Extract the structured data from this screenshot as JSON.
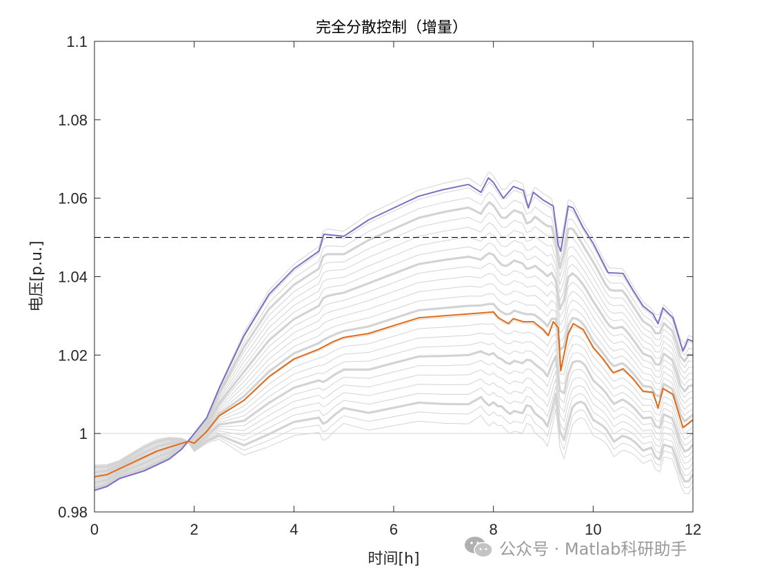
{
  "chart_data": {
    "type": "line",
    "title": "完全分散控制（增量）",
    "xlabel": "时间[h]",
    "ylabel": "电压[p.u.]",
    "xlim": [
      0,
      12
    ],
    "ylim": [
      0.98,
      1.1
    ],
    "xticks": [
      0,
      2,
      4,
      6,
      8,
      10,
      12
    ],
    "xtick_labels": [
      "0",
      "2",
      "4",
      "6",
      "8",
      "10",
      "12"
    ],
    "yticks": [
      0.98,
      1.0,
      1.02,
      1.04,
      1.06,
      1.08,
      1.1
    ],
    "ytick_labels": [
      "0.98",
      "1",
      "1.02",
      "1.04",
      "1.06",
      "1.08",
      "1.1"
    ],
    "grid": false,
    "reference_lines": [
      {
        "y": 1.05,
        "style": "dashed",
        "color": "#000000"
      }
    ],
    "colors": {
      "highlight_max": "#7B6FC4",
      "highlight_mid": "#E06A16",
      "background_series": "#D3D3D3",
      "reference": "#000000"
    },
    "series": [
      {
        "role": "max-voltage-bus",
        "color": "#7B6FC4",
        "width": 2,
        "x": [
          0,
          0.25,
          0.5,
          0.75,
          1,
          1.25,
          1.5,
          1.75,
          2,
          2.25,
          2.5,
          3,
          3.5,
          4,
          4.5,
          4.6,
          5,
          5.5,
          6,
          6.5,
          7,
          7.5,
          7.75,
          7.9,
          8,
          8.2,
          8.4,
          8.6,
          8.7,
          8.8,
          8.9,
          9,
          9.2,
          9.3,
          9.35,
          9.5,
          9.6,
          9.8,
          10,
          10.3,
          10.6,
          10.8,
          11,
          11.2,
          11.3,
          11.4,
          11.6,
          11.8,
          11.9,
          12
        ],
        "y": [
          0.9855,
          0.9865,
          0.9885,
          0.9895,
          0.9905,
          0.992,
          0.9935,
          0.996,
          1.0,
          1.004,
          1.0115,
          1.025,
          1.0355,
          1.042,
          1.0465,
          1.0508,
          1.0503,
          1.0545,
          1.0575,
          1.0605,
          1.0622,
          1.0635,
          1.0615,
          1.0652,
          1.064,
          1.06,
          1.063,
          1.062,
          1.0575,
          1.0615,
          1.0605,
          1.0595,
          1.058,
          1.048,
          1.0465,
          1.058,
          1.0575,
          1.0525,
          1.0485,
          1.041,
          1.0408,
          1.0365,
          1.0325,
          1.0305,
          1.028,
          1.032,
          1.0295,
          1.021,
          1.024,
          1.0235
        ]
      },
      {
        "role": "mid-voltage-bus",
        "color": "#E06A16",
        "width": 2,
        "x": [
          0,
          0.25,
          0.5,
          0.75,
          1,
          1.25,
          1.5,
          1.75,
          1.9,
          2,
          2.25,
          2.5,
          3,
          3.5,
          4,
          4.5,
          4.8,
          5,
          5.5,
          6,
          6.5,
          7,
          7.5,
          8,
          8.1,
          8.3,
          8.4,
          8.6,
          8.8,
          9,
          9.1,
          9.2,
          9.3,
          9.35,
          9.5,
          9.6,
          9.8,
          10,
          10.2,
          10.4,
          10.6,
          10.8,
          11,
          11.2,
          11.3,
          11.4,
          11.6,
          11.8,
          11.9,
          12
        ],
        "y": [
          0.989,
          0.9895,
          0.991,
          0.9925,
          0.994,
          0.9955,
          0.9965,
          0.9975,
          0.998,
          0.9975,
          1.0005,
          1.0045,
          1.0085,
          1.0145,
          1.019,
          1.0215,
          1.0235,
          1.0245,
          1.0255,
          1.0275,
          1.0295,
          1.03,
          1.0305,
          1.031,
          1.0295,
          1.028,
          1.0293,
          1.0285,
          1.0285,
          1.0265,
          1.025,
          1.0285,
          1.027,
          1.016,
          1.0255,
          1.028,
          1.0265,
          1.022,
          1.019,
          1.0155,
          1.0165,
          1.014,
          1.0108,
          1.0105,
          1.0065,
          1.0115,
          1.01,
          1.0015,
          1.0025,
          1.0035
        ]
      }
    ],
    "background_series_count": 26
  },
  "watermark": {
    "text": "公众号 · Matlab科研助手",
    "icon": "wechat-icon"
  }
}
